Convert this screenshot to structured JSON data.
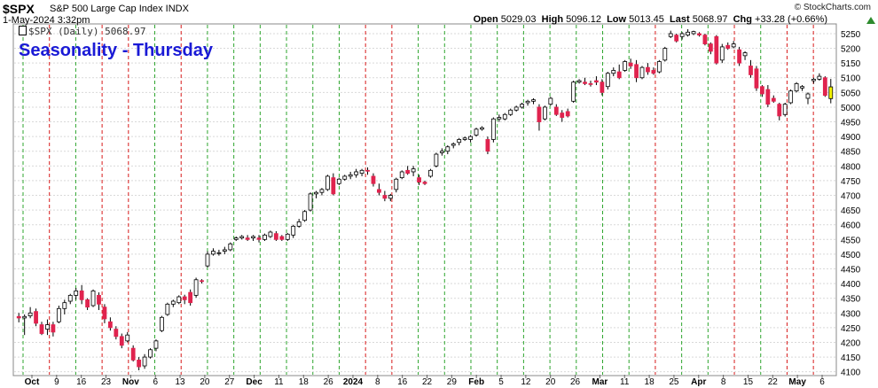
{
  "header": {
    "symbol": "$SPX",
    "company": "S&P 500 Large Cap Index INDX",
    "datetime": "1-May-2024 3:32pm",
    "watermark": "© StockCharts.com",
    "open_label": "Open",
    "open": "5029.03",
    "high_label": "High",
    "high": "5096.12",
    "low_label": "Low",
    "low": "5013.45",
    "last_label": "Last",
    "last": "5068.97",
    "chg_label": "Chg",
    "chg": "+33.28 (+0.66%)",
    "chg_direction": "up"
  },
  "legend": {
    "text": "$SPX (Daily) 5068.97"
  },
  "overlay_title": "Seasonality - Thursday",
  "colors": {
    "up": "#ffffff",
    "down": "#e0234e",
    "current": "#f5f500",
    "grid_green": "#2ea52e",
    "grid_red": "#d81b1b",
    "title": "#1a1ad6"
  },
  "chart_data": {
    "type": "candlestick",
    "ylim": [
      4090,
      5280
    ],
    "y_ticks": [
      4100,
      4150,
      4200,
      4250,
      4300,
      4350,
      4400,
      4450,
      4500,
      4550,
      4600,
      4650,
      4700,
      4750,
      4800,
      4850,
      4900,
      4950,
      5000,
      5050,
      5100,
      5150,
      5200,
      5250
    ],
    "x_tick_labels": [
      "Oct",
      "9",
      "16",
      "23",
      "Nov",
      "6",
      "13",
      "20",
      "27",
      "Dec",
      "11",
      "18",
      "26",
      "2024",
      "8",
      "16",
      "22",
      "29",
      "Feb",
      "5",
      "12",
      "20",
      "26",
      "Mar",
      "11",
      "18",
      "25",
      "Apr",
      "8",
      "15",
      "22",
      "May",
      "6"
    ],
    "bold_x_labels": [
      "Oct",
      "Nov",
      "Dec",
      "2024",
      "Feb",
      "Mar",
      "Apr",
      "May"
    ],
    "thursday_lines": [
      {
        "label_ref": "Oct",
        "color": "green"
      },
      {
        "label_ref": "Oct 5",
        "color": "red"
      },
      {
        "label_ref": "Oct 12",
        "color": "green"
      },
      {
        "label_ref": "Oct 19",
        "color": "red"
      },
      {
        "label_ref": "Oct 26",
        "color": "red"
      },
      {
        "label_ref": "Nov 2",
        "color": "green"
      },
      {
        "label_ref": "Nov 9",
        "color": "red"
      },
      {
        "label_ref": "Nov 16",
        "color": "green"
      },
      {
        "label_ref": "Nov 23",
        "color": "green"
      },
      {
        "label_ref": "Nov 30",
        "color": "green"
      },
      {
        "label_ref": "Dec 7",
        "color": "green"
      },
      {
        "label_ref": "Dec 14",
        "color": "green"
      },
      {
        "label_ref": "Dec 21",
        "color": "green"
      },
      {
        "label_ref": "Dec 28",
        "color": "red"
      },
      {
        "label_ref": "Jan 4",
        "color": "red"
      },
      {
        "label_ref": "Jan 11",
        "color": "green"
      },
      {
        "label_ref": "Jan 18",
        "color": "green"
      },
      {
        "label_ref": "Jan 25",
        "color": "green"
      },
      {
        "label_ref": "Feb 1",
        "color": "green"
      },
      {
        "label_ref": "Feb 8",
        "color": "green"
      },
      {
        "label_ref": "Feb 15",
        "color": "green"
      },
      {
        "label_ref": "Feb 22",
        "color": "green"
      },
      {
        "label_ref": "Feb 29",
        "color": "green"
      },
      {
        "label_ref": "Mar 7",
        "color": "green"
      },
      {
        "label_ref": "Mar 14",
        "color": "red"
      },
      {
        "label_ref": "Mar 21",
        "color": "green"
      },
      {
        "label_ref": "Mar 28",
        "color": "green"
      },
      {
        "label_ref": "Apr 4",
        "color": "red"
      },
      {
        "label_ref": "Apr 11",
        "color": "green"
      },
      {
        "label_ref": "Apr 18",
        "color": "red"
      },
      {
        "label_ref": "Apr 25",
        "color": "red"
      }
    ],
    "candles": [
      {
        "o": 4288,
        "h": 4300,
        "l": 4268,
        "c": 4283
      },
      {
        "o": 4283,
        "h": 4295,
        "l": 4225,
        "c": 4288
      },
      {
        "o": 4290,
        "h": 4320,
        "l": 4282,
        "c": 4300
      },
      {
        "o": 4305,
        "h": 4315,
        "l": 4255,
        "c": 4265
      },
      {
        "o": 4260,
        "h": 4270,
        "l": 4225,
        "c": 4230
      },
      {
        "o": 4245,
        "h": 4278,
        "l": 4225,
        "c": 4260
      },
      {
        "o": 4260,
        "h": 4270,
        "l": 4220,
        "c": 4235
      },
      {
        "o": 4270,
        "h": 4325,
        "l": 4265,
        "c": 4315
      },
      {
        "o": 4315,
        "h": 4345,
        "l": 4295,
        "c": 4335
      },
      {
        "o": 4340,
        "h": 4365,
        "l": 4330,
        "c": 4360
      },
      {
        "o": 4360,
        "h": 4385,
        "l": 4345,
        "c": 4375
      },
      {
        "o": 4375,
        "h": 4395,
        "l": 4330,
        "c": 4345
      },
      {
        "o": 4345,
        "h": 4350,
        "l": 4310,
        "c": 4320
      },
      {
        "o": 4325,
        "h": 4380,
        "l": 4320,
        "c": 4375
      },
      {
        "o": 4360,
        "h": 4370,
        "l": 4310,
        "c": 4330
      },
      {
        "o": 4320,
        "h": 4330,
        "l": 4265,
        "c": 4280
      },
      {
        "o": 4270,
        "h": 4285,
        "l": 4240,
        "c": 4250
      },
      {
        "o": 4245,
        "h": 4255,
        "l": 4210,
        "c": 4220
      },
      {
        "o": 4220,
        "h": 4230,
        "l": 4180,
        "c": 4190
      },
      {
        "o": 4205,
        "h": 4235,
        "l": 4200,
        "c": 4225
      },
      {
        "o": 4180,
        "h": 4190,
        "l": 4135,
        "c": 4140
      },
      {
        "o": 4140,
        "h": 4150,
        "l": 4105,
        "c": 4117
      },
      {
        "o": 4120,
        "h": 4160,
        "l": 4110,
        "c": 4150
      },
      {
        "o": 4150,
        "h": 4180,
        "l": 4145,
        "c": 4175
      },
      {
        "o": 4180,
        "h": 4210,
        "l": 4170,
        "c": 4205
      },
      {
        "o": 4240,
        "h": 4290,
        "l": 4235,
        "c": 4285
      },
      {
        "o": 4295,
        "h": 4335,
        "l": 4290,
        "c": 4330
      },
      {
        "o": 4330,
        "h": 4345,
        "l": 4320,
        "c": 4340
      },
      {
        "o": 4335,
        "h": 4360,
        "l": 4330,
        "c": 4355
      },
      {
        "o": 4355,
        "h": 4362,
        "l": 4330,
        "c": 4345
      },
      {
        "o": 4370,
        "h": 4380,
        "l": 4325,
        "c": 4335
      },
      {
        "o": 4360,
        "h": 4420,
        "l": 4352,
        "c": 4413
      },
      {
        "o": 4410,
        "h": 4415,
        "l": 4400,
        "c": 4408
      },
      {
        "o": 4460,
        "h": 4510,
        "l": 4455,
        "c": 4500
      },
      {
        "o": 4500,
        "h": 4520,
        "l": 4495,
        "c": 4510
      },
      {
        "o": 4505,
        "h": 4515,
        "l": 4495,
        "c": 4505
      },
      {
        "o": 4510,
        "h": 4525,
        "l": 4500,
        "c": 4515
      },
      {
        "o": 4515,
        "h": 4540,
        "l": 4510,
        "c": 4535
      },
      {
        "o": 4550,
        "h": 4560,
        "l": 4545,
        "c": 4555
      },
      {
        "o": 4555,
        "h": 4565,
        "l": 4550,
        "c": 4560
      },
      {
        "o": 4555,
        "h": 4565,
        "l": 4545,
        "c": 4550
      },
      {
        "o": 4555,
        "h": 4565,
        "l": 4545,
        "c": 4560
      },
      {
        "o": 4555,
        "h": 4565,
        "l": 4540,
        "c": 4550
      },
      {
        "o": 4550,
        "h": 4570,
        "l": 4545,
        "c": 4565
      },
      {
        "o": 4560,
        "h": 4580,
        "l": 4555,
        "c": 4575
      },
      {
        "o": 4570,
        "h": 4578,
        "l": 4545,
        "c": 4550
      },
      {
        "o": 4560,
        "h": 4565,
        "l": 4545,
        "c": 4550
      },
      {
        "o": 4550,
        "h": 4572,
        "l": 4545,
        "c": 4568
      },
      {
        "o": 4565,
        "h": 4600,
        "l": 4555,
        "c": 4595
      },
      {
        "o": 4595,
        "h": 4620,
        "l": 4590,
        "c": 4610
      },
      {
        "o": 4615,
        "h": 4650,
        "l": 4610,
        "c": 4645
      },
      {
        "o": 4650,
        "h": 4710,
        "l": 4645,
        "c": 4705
      },
      {
        "o": 4705,
        "h": 4715,
        "l": 4690,
        "c": 4710
      },
      {
        "o": 4710,
        "h": 4725,
        "l": 4700,
        "c": 4720
      },
      {
        "o": 4720,
        "h": 4770,
        "l": 4715,
        "c": 4765
      },
      {
        "o": 4760,
        "h": 4775,
        "l": 4700,
        "c": 4705
      },
      {
        "o": 4740,
        "h": 4760,
        "l": 4735,
        "c": 4755
      },
      {
        "o": 4755,
        "h": 4770,
        "l": 4750,
        "c": 4765
      },
      {
        "o": 4765,
        "h": 4780,
        "l": 4755,
        "c": 4770
      },
      {
        "o": 4770,
        "h": 4790,
        "l": 4760,
        "c": 4780
      },
      {
        "o": 4775,
        "h": 4790,
        "l": 4765,
        "c": 4785
      },
      {
        "o": 4785,
        "h": 4795,
        "l": 4770,
        "c": 4782
      },
      {
        "o": 4765,
        "h": 4775,
        "l": 4730,
        "c": 4740
      },
      {
        "o": 4720,
        "h": 4740,
        "l": 4700,
        "c": 4710
      },
      {
        "o": 4700,
        "h": 4715,
        "l": 4680,
        "c": 4690
      },
      {
        "o": 4690,
        "h": 4705,
        "l": 4680,
        "c": 4700
      },
      {
        "o": 4720,
        "h": 4760,
        "l": 4710,
        "c": 4755
      },
      {
        "o": 4760,
        "h": 4785,
        "l": 4755,
        "c": 4780
      },
      {
        "o": 4785,
        "h": 4800,
        "l": 4770,
        "c": 4775
      },
      {
        "o": 4780,
        "h": 4800,
        "l": 4765,
        "c": 4790
      },
      {
        "o": 4760,
        "h": 4770,
        "l": 4735,
        "c": 4745
      },
      {
        "o": 4745,
        "h": 4750,
        "l": 4735,
        "c": 4740
      },
      {
        "o": 4765,
        "h": 4790,
        "l": 4760,
        "c": 4785
      },
      {
        "o": 4800,
        "h": 4845,
        "l": 4795,
        "c": 4840
      },
      {
        "o": 4845,
        "h": 4860,
        "l": 4835,
        "c": 4850
      },
      {
        "o": 4850,
        "h": 4870,
        "l": 4840,
        "c": 4865
      },
      {
        "o": 4870,
        "h": 4880,
        "l": 4860,
        "c": 4875
      },
      {
        "o": 4880,
        "h": 4895,
        "l": 4870,
        "c": 4890
      },
      {
        "o": 4890,
        "h": 4900,
        "l": 4885,
        "c": 4895
      },
      {
        "o": 4890,
        "h": 4905,
        "l": 4880,
        "c": 4900
      },
      {
        "o": 4905,
        "h": 4930,
        "l": 4900,
        "c": 4925
      },
      {
        "o": 4925,
        "h": 4935,
        "l": 4920,
        "c": 4930
      },
      {
        "o": 4890,
        "h": 4900,
        "l": 4840,
        "c": 4850
      },
      {
        "o": 4890,
        "h": 4965,
        "l": 4880,
        "c": 4960
      },
      {
        "o": 4960,
        "h": 4975,
        "l": 4950,
        "c": 4965
      },
      {
        "o": 4960,
        "h": 4980,
        "l": 4955,
        "c": 4975
      },
      {
        "o": 4975,
        "h": 4995,
        "l": 4970,
        "c": 4990
      },
      {
        "o": 4990,
        "h": 5005,
        "l": 4985,
        "c": 5000
      },
      {
        "o": 5000,
        "h": 5015,
        "l": 4995,
        "c": 5010
      },
      {
        "o": 5015,
        "h": 5025,
        "l": 5005,
        "c": 5020
      },
      {
        "o": 5020,
        "h": 5030,
        "l": 5010,
        "c": 5025
      },
      {
        "o": 5000,
        "h": 5010,
        "l": 4920,
        "c": 4950
      },
      {
        "o": 4960,
        "h": 5005,
        "l": 4955,
        "c": 5000
      },
      {
        "o": 5010,
        "h": 5035,
        "l": 5005,
        "c": 5030
      },
      {
        "o": 5000,
        "h": 5010,
        "l": 4970,
        "c": 4975
      },
      {
        "o": 4980,
        "h": 4990,
        "l": 4950,
        "c": 4965
      },
      {
        "o": 4985,
        "h": 4995,
        "l": 4965,
        "c": 4970
      },
      {
        "o": 5020,
        "h": 5090,
        "l": 5015,
        "c": 5085
      },
      {
        "o": 5085,
        "h": 5095,
        "l": 5080,
        "c": 5090
      },
      {
        "o": 5085,
        "h": 5100,
        "l": 5075,
        "c": 5080
      },
      {
        "o": 5080,
        "h": 5090,
        "l": 5070,
        "c": 5078
      },
      {
        "o": 5090,
        "h": 5105,
        "l": 5075,
        "c": 5085
      },
      {
        "o": 5085,
        "h": 5095,
        "l": 5040,
        "c": 5050
      },
      {
        "o": 5070,
        "h": 5120,
        "l": 5060,
        "c": 5115
      },
      {
        "o": 5115,
        "h": 5135,
        "l": 5105,
        "c": 5125
      },
      {
        "o": 5120,
        "h": 5145,
        "l": 5095,
        "c": 5100
      },
      {
        "o": 5125,
        "h": 5160,
        "l": 5120,
        "c": 5155
      },
      {
        "o": 5150,
        "h": 5165,
        "l": 5130,
        "c": 5140
      },
      {
        "o": 5145,
        "h": 5160,
        "l": 5085,
        "c": 5100
      },
      {
        "o": 5100,
        "h": 5140,
        "l": 5095,
        "c": 5135
      },
      {
        "o": 5135,
        "h": 5150,
        "l": 5110,
        "c": 5120
      },
      {
        "o": 5125,
        "h": 5135,
        "l": 5110,
        "c": 5115
      },
      {
        "o": 5120,
        "h": 5160,
        "l": 5115,
        "c": 5155
      },
      {
        "o": 5160,
        "h": 5205,
        "l": 5155,
        "c": 5200
      },
      {
        "o": 5240,
        "h": 5260,
        "l": 5235,
        "c": 5250
      },
      {
        "o": 5245,
        "h": 5250,
        "l": 5220,
        "c": 5225
      },
      {
        "o": 5240,
        "h": 5255,
        "l": 5230,
        "c": 5250
      },
      {
        "o": 5245,
        "h": 5265,
        "l": 5240,
        "c": 5255
      },
      {
        "o": 5250,
        "h": 5260,
        "l": 5245,
        "c": 5257
      },
      {
        "o": 5250,
        "h": 5255,
        "l": 5240,
        "c": 5245
      },
      {
        "o": 5245,
        "h": 5250,
        "l": 5210,
        "c": 5215
      },
      {
        "o": 5215,
        "h": 5220,
        "l": 5180,
        "c": 5190
      },
      {
        "o": 5240,
        "h": 5245,
        "l": 5145,
        "c": 5150
      },
      {
        "o": 5160,
        "h": 5215,
        "l": 5150,
        "c": 5205
      },
      {
        "o": 5210,
        "h": 5220,
        "l": 5195,
        "c": 5200
      },
      {
        "o": 5205,
        "h": 5225,
        "l": 5200,
        "c": 5215
      },
      {
        "o": 5195,
        "h": 5205,
        "l": 5140,
        "c": 5150
      },
      {
        "o": 5175,
        "h": 5190,
        "l": 5160,
        "c": 5185
      },
      {
        "o": 5140,
        "h": 5160,
        "l": 5100,
        "c": 5110
      },
      {
        "o": 5130,
        "h": 5140,
        "l": 5055,
        "c": 5065
      },
      {
        "o": 5070,
        "h": 5075,
        "l": 5035,
        "c": 5045
      },
      {
        "o": 5060,
        "h": 5075,
        "l": 5000,
        "c": 5010
      },
      {
        "o": 5030,
        "h": 5040,
        "l": 5015,
        "c": 5020
      },
      {
        "o": 5010,
        "h": 5015,
        "l": 4955,
        "c": 4970
      },
      {
        "o": 4975,
        "h": 5015,
        "l": 4968,
        "c": 5010
      },
      {
        "o": 5015,
        "h": 5060,
        "l": 5010,
        "c": 5055
      },
      {
        "o": 5055,
        "h": 5085,
        "l": 5050,
        "c": 5080
      },
      {
        "o": 5065,
        "h": 5075,
        "l": 5055,
        "c": 5070
      },
      {
        "o": 5030,
        "h": 5050,
        "l": 5010,
        "c": 5045
      },
      {
        "o": 5090,
        "h": 5100,
        "l": 5080,
        "c": 5095
      },
      {
        "o": 5095,
        "h": 5115,
        "l": 5090,
        "c": 5105
      },
      {
        "o": 5100,
        "h": 5105,
        "l": 5035,
        "c": 5040
      },
      {
        "o": 5029,
        "h": 5096,
        "l": 5013,
        "c": 5069
      }
    ]
  }
}
